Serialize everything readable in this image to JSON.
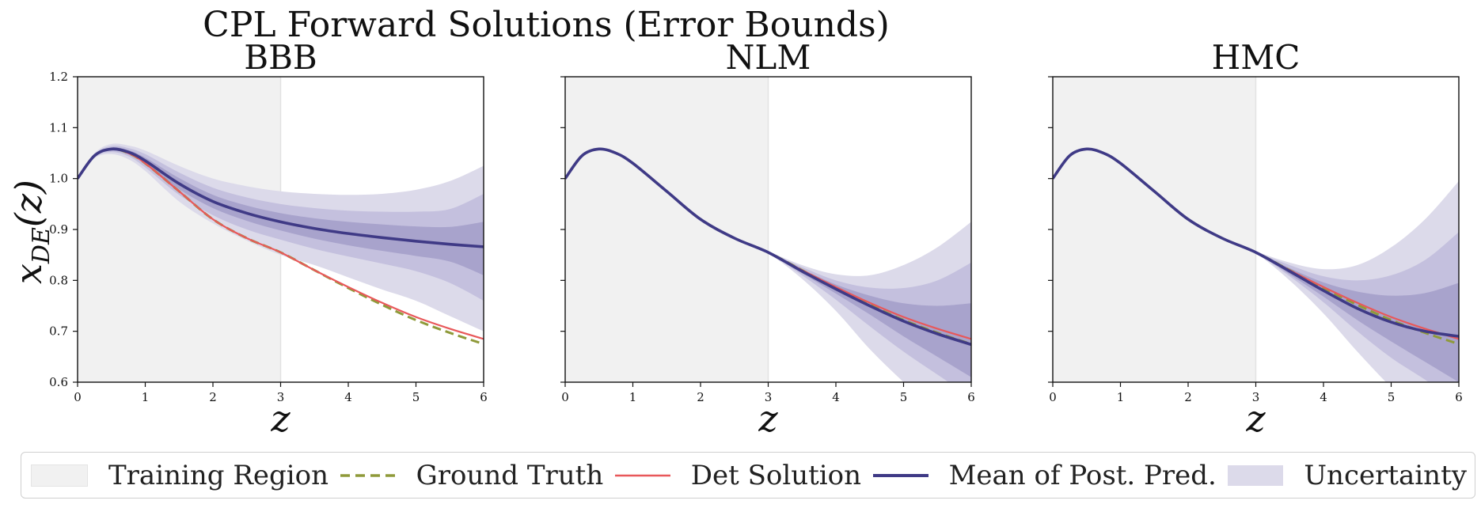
{
  "figure": {
    "title": "CPL Forward Solutions (Error Bounds)",
    "ylabel_main": "x",
    "ylabel_sub": "DE",
    "ylabel_arg": "(z)",
    "xlabel": "z"
  },
  "colors": {
    "training": "#f1f1f1",
    "ground_truth": "#8f9a3a",
    "det_solution": "#e8585a",
    "mean": "#3f3a86",
    "band_outer": "#dcdaea",
    "band_mid": "#c4c0de",
    "band_inner": "#a8a3cc"
  },
  "legend": {
    "items": [
      {
        "key": "training",
        "label": "Training Region"
      },
      {
        "key": "ground_truth",
        "label": "Ground Truth"
      },
      {
        "key": "det",
        "label": "Det Solution"
      },
      {
        "key": "mean",
        "label": "Mean of Post. Pred."
      },
      {
        "key": "unc",
        "label": "Uncertainty"
      }
    ],
    "placement": "bottom-center"
  },
  "chart_data": [
    {
      "type": "line",
      "title": "BBB",
      "xlabel": "z",
      "ylabel": "x_DE(z)",
      "xlim": [
        0,
        6
      ],
      "ylim": [
        0.6,
        1.2
      ],
      "xticks": [
        0,
        1,
        2,
        3,
        4,
        5,
        6
      ],
      "yticks": [
        0.6,
        0.7,
        0.8,
        0.9,
        1.0,
        1.1,
        1.2
      ],
      "training_region": [
        0,
        3
      ],
      "x": [
        0,
        0.25,
        0.5,
        0.75,
        1,
        1.5,
        2,
        2.5,
        3,
        3.5,
        4,
        4.5,
        5,
        5.5,
        6
      ],
      "series": [
        {
          "name": "Ground Truth",
          "values": [
            1.0,
            1.045,
            1.058,
            1.05,
            1.03,
            0.975,
            0.92,
            0.883,
            0.855,
            0.82,
            0.785,
            0.752,
            0.722,
            0.697,
            0.675
          ]
        },
        {
          "name": "Det Solution",
          "values": [
            1.0,
            1.045,
            1.058,
            1.05,
            1.03,
            0.975,
            0.92,
            0.883,
            0.855,
            0.82,
            0.787,
            0.756,
            0.728,
            0.705,
            0.685
          ]
        },
        {
          "name": "Mean of Post. Pred.",
          "values": [
            1.0,
            1.045,
            1.058,
            1.052,
            1.035,
            0.99,
            0.955,
            0.932,
            0.915,
            0.902,
            0.892,
            0.884,
            0.877,
            0.871,
            0.866
          ]
        }
      ],
      "uncertainty": {
        "outer_upper": [
          1.0,
          1.05,
          1.068,
          1.065,
          1.055,
          1.025,
          1.0,
          0.985,
          0.975,
          0.97,
          0.968,
          0.97,
          0.978,
          0.995,
          1.025
        ],
        "outer_lower": [
          1.0,
          1.04,
          1.048,
          1.038,
          1.015,
          0.955,
          0.912,
          0.878,
          0.85,
          0.83,
          0.806,
          0.782,
          0.76,
          0.73,
          0.7
        ],
        "mid_upper": [
          1.0,
          1.048,
          1.064,
          1.06,
          1.048,
          1.012,
          0.982,
          0.963,
          0.95,
          0.942,
          0.937,
          0.935,
          0.935,
          0.94,
          0.97
        ],
        "mid_lower": [
          1.0,
          1.042,
          1.052,
          1.044,
          1.022,
          0.968,
          0.928,
          0.9,
          0.88,
          0.862,
          0.847,
          0.833,
          0.818,
          0.795,
          0.76
        ],
        "inner_upper": [
          1.0,
          1.046,
          1.061,
          1.056,
          1.041,
          1.001,
          0.968,
          0.947,
          0.932,
          0.922,
          0.915,
          0.91,
          0.906,
          0.905,
          0.915
        ],
        "inner_lower": [
          1.0,
          1.044,
          1.055,
          1.048,
          1.029,
          0.979,
          0.942,
          0.917,
          0.898,
          0.882,
          0.869,
          0.858,
          0.848,
          0.837,
          0.81
        ]
      }
    },
    {
      "type": "line",
      "title": "NLM",
      "xlabel": "z",
      "xlim": [
        0,
        6
      ],
      "ylim": [
        0.6,
        1.2
      ],
      "xticks": [
        0,
        1,
        2,
        3,
        4,
        5,
        6
      ],
      "yticks": [
        0.6,
        0.7,
        0.8,
        0.9,
        1.0,
        1.1,
        1.2
      ],
      "training_region": [
        0,
        3
      ],
      "x": [
        0,
        0.25,
        0.5,
        0.75,
        1,
        1.5,
        2,
        2.5,
        3,
        3.5,
        4,
        4.5,
        5,
        5.5,
        6
      ],
      "series": [
        {
          "name": "Ground Truth",
          "values": [
            1.0,
            1.045,
            1.058,
            1.05,
            1.03,
            0.975,
            0.92,
            0.883,
            0.855,
            0.82,
            0.785,
            0.752,
            0.722,
            0.697,
            0.675
          ]
        },
        {
          "name": "Det Solution",
          "values": [
            1.0,
            1.045,
            1.058,
            1.05,
            1.03,
            0.975,
            0.92,
            0.883,
            0.855,
            0.82,
            0.787,
            0.756,
            0.728,
            0.705,
            0.685
          ]
        },
        {
          "name": "Mean of Post. Pred.",
          "values": [
            1.0,
            1.045,
            1.058,
            1.05,
            1.03,
            0.975,
            0.92,
            0.883,
            0.855,
            0.818,
            0.783,
            0.75,
            0.72,
            0.695,
            0.674
          ]
        }
      ],
      "uncertainty": {
        "outer_upper": [
          1.0,
          1.045,
          1.058,
          1.05,
          1.03,
          0.975,
          0.92,
          0.883,
          0.857,
          0.83,
          0.812,
          0.81,
          0.83,
          0.865,
          0.915
        ],
        "outer_lower": [
          1.0,
          1.045,
          1.058,
          1.05,
          1.03,
          0.975,
          0.92,
          0.883,
          0.853,
          0.803,
          0.74,
          0.665,
          0.6,
          0.54,
          0.48
        ],
        "mid_upper": [
          1.0,
          1.045,
          1.058,
          1.05,
          1.03,
          0.975,
          0.92,
          0.883,
          0.856,
          0.826,
          0.8,
          0.786,
          0.785,
          0.8,
          0.835
        ],
        "mid_lower": [
          1.0,
          1.045,
          1.058,
          1.05,
          1.03,
          0.975,
          0.92,
          0.883,
          0.854,
          0.81,
          0.762,
          0.71,
          0.66,
          0.615,
          0.57
        ],
        "inner_upper": [
          1.0,
          1.045,
          1.058,
          1.05,
          1.03,
          0.975,
          0.92,
          0.883,
          0.855,
          0.822,
          0.792,
          0.77,
          0.755,
          0.75,
          0.755
        ],
        "inner_lower": [
          1.0,
          1.045,
          1.058,
          1.05,
          1.03,
          0.975,
          0.92,
          0.883,
          0.855,
          0.814,
          0.774,
          0.733,
          0.69,
          0.65,
          0.61
        ]
      }
    },
    {
      "type": "line",
      "title": "HMC",
      "xlabel": "z",
      "xlim": [
        0,
        6
      ],
      "ylim": [
        0.6,
        1.2
      ],
      "xticks": [
        0,
        1,
        2,
        3,
        4,
        5,
        6
      ],
      "yticks": [
        0.6,
        0.7,
        0.8,
        0.9,
        1.0,
        1.1,
        1.2
      ],
      "training_region": [
        0,
        3
      ],
      "x": [
        0,
        0.25,
        0.5,
        0.75,
        1,
        1.5,
        2,
        2.5,
        3,
        3.5,
        4,
        4.5,
        5,
        5.5,
        6
      ],
      "series": [
        {
          "name": "Ground Truth",
          "values": [
            1.0,
            1.045,
            1.058,
            1.05,
            1.03,
            0.975,
            0.92,
            0.883,
            0.855,
            0.82,
            0.785,
            0.752,
            0.722,
            0.697,
            0.675
          ]
        },
        {
          "name": "Det Solution",
          "values": [
            1.0,
            1.045,
            1.058,
            1.05,
            1.03,
            0.975,
            0.92,
            0.883,
            0.855,
            0.82,
            0.787,
            0.756,
            0.728,
            0.705,
            0.685
          ]
        },
        {
          "name": "Mean of Post. Pred.",
          "values": [
            1.0,
            1.045,
            1.058,
            1.05,
            1.03,
            0.975,
            0.92,
            0.883,
            0.855,
            0.818,
            0.78,
            0.745,
            0.718,
            0.7,
            0.69
          ]
        }
      ],
      "uncertainty": {
        "outer_upper": [
          1.0,
          1.045,
          1.058,
          1.05,
          1.03,
          0.975,
          0.92,
          0.883,
          0.857,
          0.835,
          0.822,
          0.83,
          0.865,
          0.92,
          0.995
        ],
        "outer_lower": [
          1.0,
          1.045,
          1.058,
          1.05,
          1.03,
          0.975,
          0.92,
          0.883,
          0.853,
          0.8,
          0.735,
          0.66,
          0.59,
          0.53,
          0.47
        ],
        "mid_upper": [
          1.0,
          1.045,
          1.058,
          1.05,
          1.03,
          0.975,
          0.92,
          0.883,
          0.856,
          0.83,
          0.808,
          0.8,
          0.81,
          0.84,
          0.895
        ],
        "mid_lower": [
          1.0,
          1.045,
          1.058,
          1.05,
          1.03,
          0.975,
          0.92,
          0.883,
          0.854,
          0.808,
          0.757,
          0.7,
          0.648,
          0.605,
          0.56
        ],
        "inner_upper": [
          1.0,
          1.045,
          1.058,
          1.05,
          1.03,
          0.975,
          0.92,
          0.883,
          0.855,
          0.824,
          0.796,
          0.778,
          0.77,
          0.775,
          0.795
        ],
        "inner_lower": [
          1.0,
          1.045,
          1.058,
          1.05,
          1.03,
          0.975,
          0.92,
          0.883,
          0.855,
          0.812,
          0.768,
          0.722,
          0.68,
          0.64,
          0.6
        ]
      }
    }
  ]
}
